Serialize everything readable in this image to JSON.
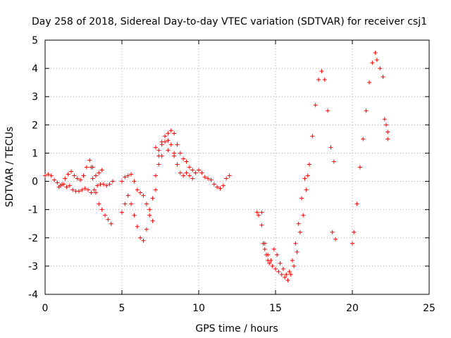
{
  "chart_data": {
    "type": "scatter",
    "title": "Day 258 of 2018, Sidereal Day-to-day VTEC variation (SDTVAR) for receiver csj1",
    "xlabel": "GPS time / hours",
    "ylabel": "SDTVAR / TECUs",
    "xlim": [
      0,
      25
    ],
    "ylim": [
      -4,
      5
    ],
    "xticks": [
      0,
      5,
      10,
      15,
      20,
      25
    ],
    "yticks": [
      -4,
      -3,
      -2,
      -1,
      0,
      1,
      2,
      3,
      4,
      5
    ],
    "x_tick_labels": [
      "0",
      "5",
      "10",
      "15",
      "20",
      "25"
    ],
    "y_tick_labels": [
      "-4",
      "-3",
      "-2",
      "-1",
      "0",
      "1",
      "2",
      "3",
      "4",
      "5"
    ],
    "grid": true,
    "marker": "+",
    "marker_color": "#ff0000",
    "series": [
      {
        "name": "csj1",
        "points": [
          [
            0.0,
            0.2
          ],
          [
            0.2,
            0.25
          ],
          [
            0.4,
            0.2
          ],
          [
            0.6,
            0.05
          ],
          [
            0.8,
            -0.05
          ],
          [
            1.0,
            -0.15
          ],
          [
            1.2,
            -0.1
          ],
          [
            1.4,
            -0.2
          ],
          [
            1.6,
            -0.15
          ],
          [
            1.8,
            -0.3
          ],
          [
            2.0,
            -0.35
          ],
          [
            2.2,
            -0.35
          ],
          [
            2.4,
            -0.3
          ],
          [
            2.6,
            -0.25
          ],
          [
            2.8,
            -0.3
          ],
          [
            3.0,
            -0.4
          ],
          [
            3.2,
            -0.3
          ],
          [
            3.4,
            -0.15
          ],
          [
            3.6,
            -0.1
          ],
          [
            3.8,
            -0.1
          ],
          [
            4.0,
            -0.15
          ],
          [
            4.2,
            -0.1
          ],
          [
            4.4,
            0.0
          ],
          [
            0.9,
            -0.2
          ],
          [
            1.1,
            -0.1
          ],
          [
            1.3,
            0.1
          ],
          [
            1.5,
            0.25
          ],
          [
            1.7,
            0.35
          ],
          [
            1.9,
            0.2
          ],
          [
            2.1,
            0.1
          ],
          [
            2.3,
            0.05
          ],
          [
            2.5,
            0.2
          ],
          [
            2.7,
            0.5
          ],
          [
            2.9,
            0.75
          ],
          [
            3.1,
            0.5
          ],
          [
            3.3,
            0.2
          ],
          [
            3.5,
            0.3
          ],
          [
            3.7,
            0.4
          ],
          [
            3.0,
            0.5
          ],
          [
            3.1,
            0.1
          ],
          [
            3.3,
            -0.4
          ],
          [
            3.5,
            -0.8
          ],
          [
            3.7,
            -1.0
          ],
          [
            3.9,
            -1.2
          ],
          [
            4.1,
            -1.35
          ],
          [
            4.3,
            -1.5
          ],
          [
            5.0,
            -1.1
          ],
          [
            5.2,
            -0.8
          ],
          [
            5.4,
            -0.5
          ],
          [
            5.6,
            -0.8
          ],
          [
            5.8,
            -1.2
          ],
          [
            6.0,
            -1.6
          ],
          [
            6.2,
            -2.0
          ],
          [
            6.4,
            -2.1
          ],
          [
            6.6,
            -1.7
          ],
          [
            6.8,
            -1.2
          ],
          [
            7.0,
            -0.6
          ],
          [
            7.2,
            0.2
          ],
          [
            7.4,
            0.6
          ],
          [
            7.6,
            0.9
          ],
          [
            7.8,
            1.4
          ],
          [
            8.0,
            1.45
          ],
          [
            8.2,
            1.3
          ],
          [
            8.4,
            1.0
          ],
          [
            8.6,
            0.6
          ],
          [
            8.8,
            0.3
          ],
          [
            9.0,
            0.2
          ],
          [
            9.2,
            0.3
          ],
          [
            9.4,
            0.2
          ],
          [
            9.6,
            0.1
          ],
          [
            5.0,
            0.0
          ],
          [
            5.2,
            0.15
          ],
          [
            5.4,
            0.2
          ],
          [
            5.6,
            0.25
          ],
          [
            5.8,
            0.0
          ],
          [
            6.0,
            -0.3
          ],
          [
            6.2,
            -0.4
          ],
          [
            6.4,
            -0.5
          ],
          [
            6.6,
            -0.8
          ],
          [
            6.8,
            -1.0
          ],
          [
            7.0,
            -1.4
          ],
          [
            7.2,
            -0.3
          ],
          [
            7.4,
            0.9
          ],
          [
            7.6,
            1.4
          ],
          [
            7.8,
            1.6
          ],
          [
            8.0,
            1.7
          ],
          [
            8.2,
            1.8
          ],
          [
            8.4,
            1.7
          ],
          [
            8.6,
            1.3
          ],
          [
            8.8,
            1.0
          ],
          [
            9.0,
            0.8
          ],
          [
            9.2,
            0.7
          ],
          [
            9.4,
            0.5
          ],
          [
            9.6,
            0.4
          ],
          [
            9.8,
            0.3
          ],
          [
            10.0,
            0.4
          ],
          [
            10.2,
            0.3
          ],
          [
            10.4,
            0.15
          ],
          [
            10.6,
            0.1
          ],
          [
            10.8,
            0.05
          ],
          [
            11.0,
            -0.1
          ],
          [
            11.2,
            -0.2
          ],
          [
            11.4,
            -0.25
          ],
          [
            11.6,
            -0.15
          ],
          [
            11.8,
            0.1
          ],
          [
            12.0,
            0.2
          ],
          [
            7.2,
            1.2
          ],
          [
            7.4,
            1.1
          ],
          [
            7.6,
            1.3
          ],
          [
            8.0,
            1.1
          ],
          [
            8.4,
            0.9
          ],
          [
            13.8,
            -1.1
          ],
          [
            13.9,
            -1.2
          ],
          [
            14.1,
            -1.1
          ],
          [
            14.1,
            -1.55
          ],
          [
            14.2,
            -2.2
          ],
          [
            14.3,
            -2.4
          ],
          [
            14.4,
            -2.6
          ],
          [
            14.5,
            -2.8
          ],
          [
            14.6,
            -2.9
          ],
          [
            14.8,
            -3.0
          ],
          [
            15.0,
            -3.1
          ],
          [
            15.2,
            -3.2
          ],
          [
            15.4,
            -3.3
          ],
          [
            15.6,
            -3.4
          ],
          [
            15.8,
            -3.5
          ],
          [
            16.0,
            -3.3
          ],
          [
            16.2,
            -3.0
          ],
          [
            16.4,
            -2.5
          ],
          [
            16.6,
            -1.8
          ],
          [
            16.8,
            -1.2
          ],
          [
            17.0,
            -0.3
          ],
          [
            17.2,
            0.6
          ],
          [
            17.4,
            1.6
          ],
          [
            17.6,
            2.7
          ],
          [
            17.8,
            3.6
          ],
          [
            18.0,
            3.9
          ],
          [
            18.2,
            3.6
          ],
          [
            18.4,
            2.5
          ],
          [
            18.6,
            1.2
          ],
          [
            18.8,
            0.7
          ],
          [
            14.3,
            -2.2
          ],
          [
            14.5,
            -2.6
          ],
          [
            14.7,
            -2.8
          ],
          [
            14.9,
            -2.4
          ],
          [
            15.1,
            -2.6
          ],
          [
            15.3,
            -2.9
          ],
          [
            15.5,
            -3.1
          ],
          [
            15.7,
            -3.3
          ],
          [
            15.9,
            -3.2
          ],
          [
            16.1,
            -2.8
          ],
          [
            16.3,
            -2.2
          ],
          [
            16.5,
            -1.5
          ],
          [
            16.7,
            -0.6
          ],
          [
            16.9,
            0.1
          ],
          [
            17.1,
            0.2
          ],
          [
            18.7,
            -1.8
          ],
          [
            18.9,
            -2.05
          ],
          [
            20.0,
            -2.2
          ],
          [
            20.1,
            -1.8
          ],
          [
            20.3,
            -0.8
          ],
          [
            20.5,
            0.5
          ],
          [
            20.7,
            1.5
          ],
          [
            20.9,
            2.5
          ],
          [
            21.1,
            3.5
          ],
          [
            21.3,
            4.2
          ],
          [
            21.5,
            4.55
          ],
          [
            21.6,
            4.3
          ],
          [
            21.8,
            4.0
          ],
          [
            22.0,
            3.7
          ],
          [
            22.1,
            2.2
          ],
          [
            22.2,
            2.0
          ],
          [
            22.3,
            1.5
          ],
          [
            22.3,
            1.75
          ]
        ]
      }
    ]
  }
}
